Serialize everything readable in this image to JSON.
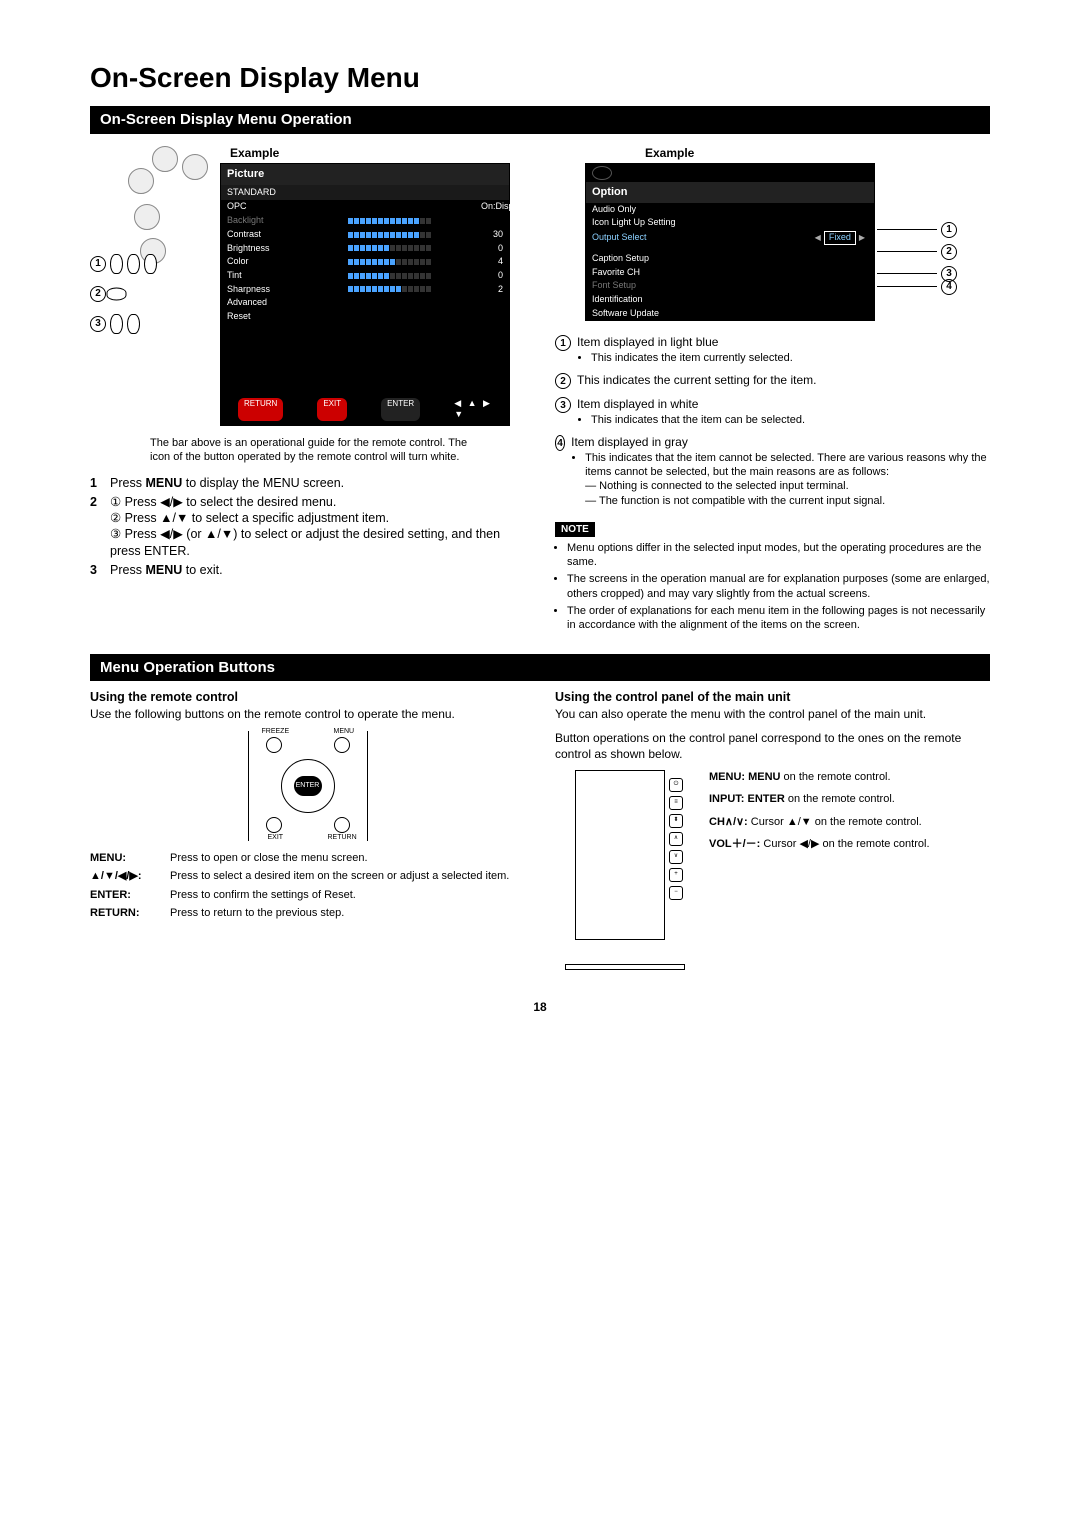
{
  "pageTitle": "On-Screen Display Menu",
  "section1": "On-Screen Display Menu Operation",
  "section2": "Menu Operation Buttons",
  "exampleLabel": "Example",
  "pictureMenu": {
    "title": "Picture",
    "mode": "STANDARD",
    "rows": [
      {
        "name": "OPC",
        "right": "On:Display",
        "bars": 0,
        "cls": ""
      },
      {
        "name": "Backlight",
        "right": "",
        "bars": 12,
        "cls": "gray"
      },
      {
        "name": "Contrast",
        "right": "30",
        "bars": 12,
        "cls": ""
      },
      {
        "name": "Brightness",
        "right": "0",
        "bars": 7,
        "cls": ""
      },
      {
        "name": "Color",
        "right": "4",
        "bars": 8,
        "cls": ""
      },
      {
        "name": "Tint",
        "right": "0",
        "bars": 7,
        "cls": ""
      },
      {
        "name": "Sharpness",
        "right": "2",
        "bars": 9,
        "cls": ""
      },
      {
        "name": "Advanced",
        "right": "",
        "bars": 0,
        "cls": ""
      },
      {
        "name": "Reset",
        "right": "",
        "bars": 0,
        "cls": ""
      }
    ],
    "footer": {
      "return": "RETURN",
      "exit": "EXIT",
      "enter": "ENTER"
    }
  },
  "guideNote": "The bar above is an operational guide for the remote control. The icon of the button operated by the remote control will turn white.",
  "steps": {
    "s1": "Press MENU to display the MENU screen.",
    "s2a": "① Press ◀/▶ to select the desired menu.",
    "s2b": "② Press ▲/▼ to select a specific adjustment item.",
    "s2c": "③ Press ◀/▶ (or ▲/▼) to select or adjust the desired setting, and then press ENTER.",
    "s3": "Press MENU to exit.",
    "menuWord": "MENU",
    "enterWord": "ENTER"
  },
  "optionMenu": {
    "title": "Option",
    "rows": [
      {
        "name": "Audio Only",
        "cls": ""
      },
      {
        "name": "Icon Light Up Setting",
        "cls": ""
      },
      {
        "name": "Output Select",
        "cls": "sel",
        "value": "Fixed"
      },
      {
        "name": "",
        "cls": "spacer"
      },
      {
        "name": "Caption Setup",
        "cls": ""
      },
      {
        "name": "Favorite CH",
        "cls": ""
      },
      {
        "name": "Font Setup",
        "cls": "gray"
      },
      {
        "name": "Identification",
        "cls": ""
      },
      {
        "name": "Software Update",
        "cls": ""
      }
    ]
  },
  "expl": {
    "e1t": "Item displayed in light blue",
    "e1b": "This indicates the item currently selected.",
    "e2t": "This indicates the current setting for the item.",
    "e3t": "Item displayed in white",
    "e3b": "This indicates that the item can be selected.",
    "e4t": "Item displayed in gray",
    "e4b1": "This indicates that the item cannot be selected. There are various reasons why the items cannot be selected, but the main reasons are as follows:",
    "e4d1": "Nothing is connected to the selected input terminal.",
    "e4d2": "The function is not compatible with the current input signal."
  },
  "noteLabel": "NOTE",
  "notes": [
    "Menu options differ in the selected input modes, but the operating procedures are the same.",
    "The screens in the operation manual are for explanation purposes (some are enlarged, others cropped) and may vary slightly from the actual screens.",
    "The order of explanations for each menu item in the following pages is not necessarily in accordance with the alignment of the items on the screen."
  ],
  "remote": {
    "heading": "Using the remote control",
    "intro": "Use the following buttons on the remote control to operate the menu.",
    "labels": {
      "freeze": "FREEZE",
      "menu": "MENU",
      "enter": "ENTER",
      "exit": "EXIT",
      "return": "RETURN"
    },
    "table": {
      "menu": {
        "k": "MENU:",
        "v": "Press to open or close the menu screen."
      },
      "arrows": {
        "k": "▲/▼/◀/▶:",
        "v": "Press to select a desired item on the screen or adjust a selected item."
      },
      "enter": {
        "k": "ENTER:",
        "v": "Press to confirm the settings of Reset."
      },
      "return": {
        "k": "RETURN:",
        "v": "Press to return to the previous step."
      }
    }
  },
  "panel": {
    "heading": "Using the control panel of the main unit",
    "intro1": "You can also operate the menu with the control panel of the main unit.",
    "intro2": "Button operations on the control panel correspond to the ones on the remote control as shown below.",
    "btnGlyphs": [
      "⏻",
      "≡",
      "⬍",
      "∧",
      "∨",
      "+",
      "−"
    ],
    "map": {
      "menu": {
        "k": "MENU: MENU",
        "v": " on the remote control."
      },
      "input": {
        "k": "INPUT: ENTER",
        "v": " on the remote control."
      },
      "ch": {
        "k": "CH∧/∨:",
        "v": " Cursor ▲/▼ on the remote control."
      },
      "vol": {
        "k": "VOL＋/－:",
        "v": " Cursor ◀/▶ on the remote control."
      }
    }
  },
  "pageNum": "18"
}
